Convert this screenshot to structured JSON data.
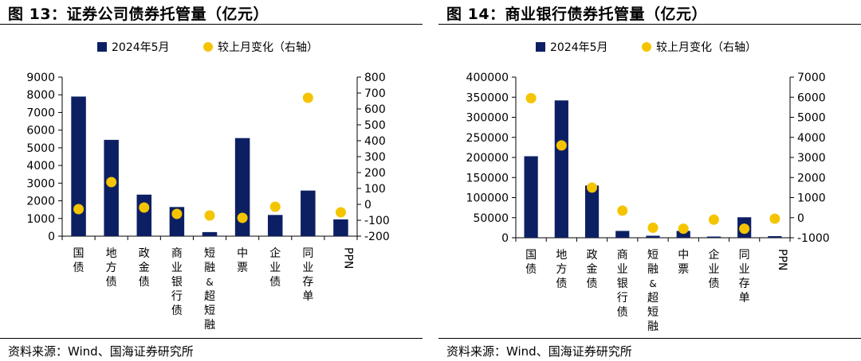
{
  "charts": [
    {
      "title": "图 13：证券公司债券托管量（亿元）",
      "source": "资料来源：Wind、国海证券研究所"
    },
    {
      "title": "图 14：商业银行债券托管量（亿元）",
      "source": "资料来源：Wind、国海证券研究所"
    }
  ],
  "chart_data": [
    {
      "type": "bar",
      "title": "图 13：证券公司债券托管量（亿元）",
      "categories": [
        "国债",
        "地方债",
        "政金债",
        "商业银行债",
        "短融&超短融",
        "中票",
        "企业债",
        "同业存单",
        "PPN"
      ],
      "series": [
        {
          "name": "2024年5月",
          "type": "bar",
          "axis": "left",
          "color": "#0d1f63",
          "values": [
            7900,
            5450,
            2350,
            1650,
            230,
            5550,
            1200,
            2580,
            950
          ]
        },
        {
          "name": "较上月变化（右轴）",
          "type": "scatter",
          "axis": "right",
          "color": "#f5c400",
          "values": [
            -30,
            140,
            -20,
            -60,
            -70,
            -85,
            -15,
            670,
            -50
          ]
        }
      ],
      "ylim_left": [
        0,
        9000
      ],
      "yticks_left": [
        0,
        1000,
        2000,
        3000,
        4000,
        5000,
        6000,
        7000,
        8000,
        9000
      ],
      "ylim_right": [
        -200,
        800
      ],
      "yticks_right": [
        -200,
        -100,
        0,
        100,
        200,
        300,
        400,
        500,
        600,
        700,
        800
      ],
      "legend_position": "top-center",
      "grid": false
    },
    {
      "type": "bar",
      "title": "图 14：商业银行债券托管量（亿元）",
      "categories": [
        "国债",
        "地方债",
        "政金债",
        "商业银行债",
        "短融&超短融",
        "中票",
        "企业债",
        "同业存单",
        "PPN"
      ],
      "series": [
        {
          "name": "2024年5月",
          "type": "bar",
          "axis": "left",
          "color": "#0d1f63",
          "values": [
            203000,
            342000,
            130000,
            17000,
            5000,
            17000,
            3000,
            51000,
            4000
          ]
        },
        {
          "name": "较上月变化（右轴）",
          "type": "scatter",
          "axis": "right",
          "color": "#f5c400",
          "values": [
            5950,
            3600,
            1500,
            350,
            -500,
            -550,
            -100,
            -550,
            -50
          ]
        }
      ],
      "ylim_left": [
        0,
        400000
      ],
      "yticks_left": [
        0,
        50000,
        100000,
        150000,
        200000,
        250000,
        300000,
        350000,
        400000
      ],
      "ylim_right": [
        -1000,
        7000
      ],
      "yticks_right": [
        -1000,
        0,
        1000,
        2000,
        3000,
        4000,
        5000,
        6000,
        7000
      ],
      "legend_position": "top-center",
      "grid": false
    }
  ]
}
